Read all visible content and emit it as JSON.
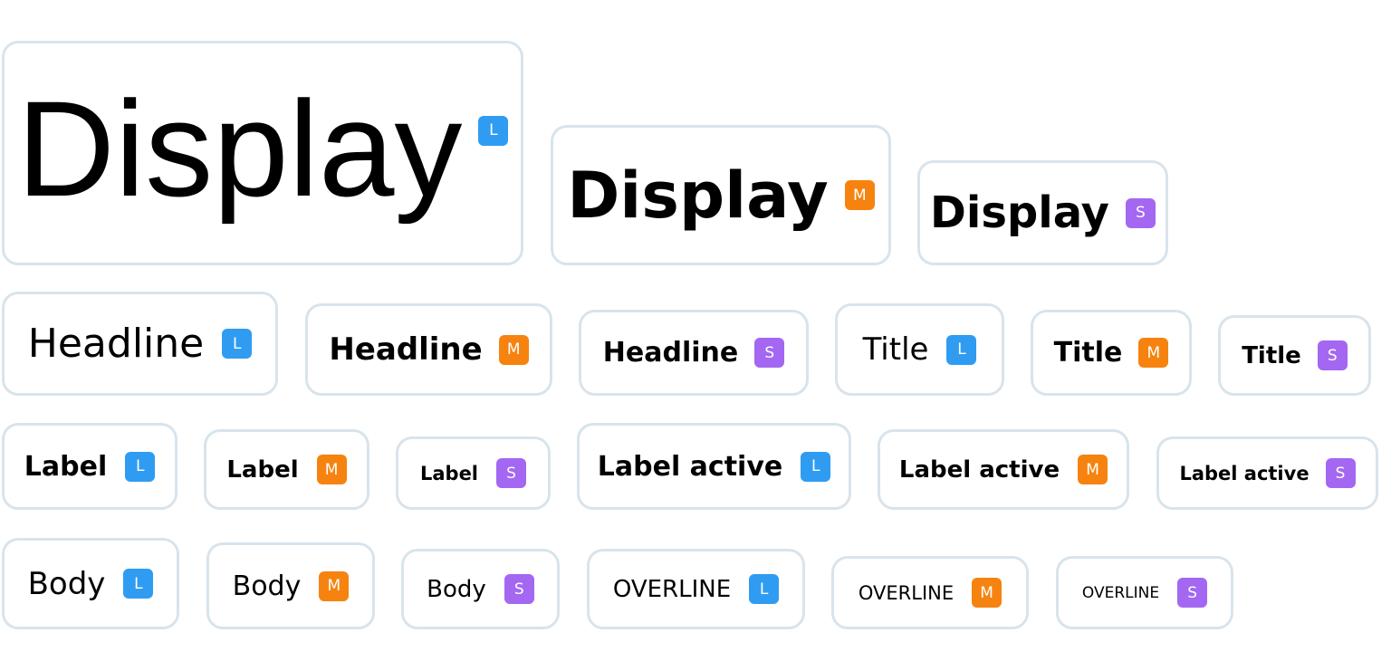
{
  "chips": [
    {
      "text": "Display",
      "badge": "L"
    },
    {
      "text": "Display",
      "badge": "M"
    },
    {
      "text": "Display",
      "badge": "S"
    },
    {
      "text": "Headline",
      "badge": "L"
    },
    {
      "text": "Headline",
      "badge": "M"
    },
    {
      "text": "Headline",
      "badge": "S"
    },
    {
      "text": "Title",
      "badge": "L"
    },
    {
      "text": "Title",
      "badge": "M"
    },
    {
      "text": "Title",
      "badge": "S"
    },
    {
      "text": "Label",
      "badge": "L"
    },
    {
      "text": "Label",
      "badge": "M"
    },
    {
      "text": "Label",
      "badge": "S"
    },
    {
      "text": "Label active",
      "badge": "L"
    },
    {
      "text": "Label active",
      "badge": "M"
    },
    {
      "text": "Label active",
      "badge": "S"
    },
    {
      "text": "Body",
      "badge": "L"
    },
    {
      "text": "Body",
      "badge": "M"
    },
    {
      "text": "Body",
      "badge": "S"
    },
    {
      "text": "OVERLINE",
      "badge": "L"
    },
    {
      "text": "OVERLINE",
      "badge": "M"
    },
    {
      "text": "OVERLINE",
      "badge": "S"
    }
  ]
}
